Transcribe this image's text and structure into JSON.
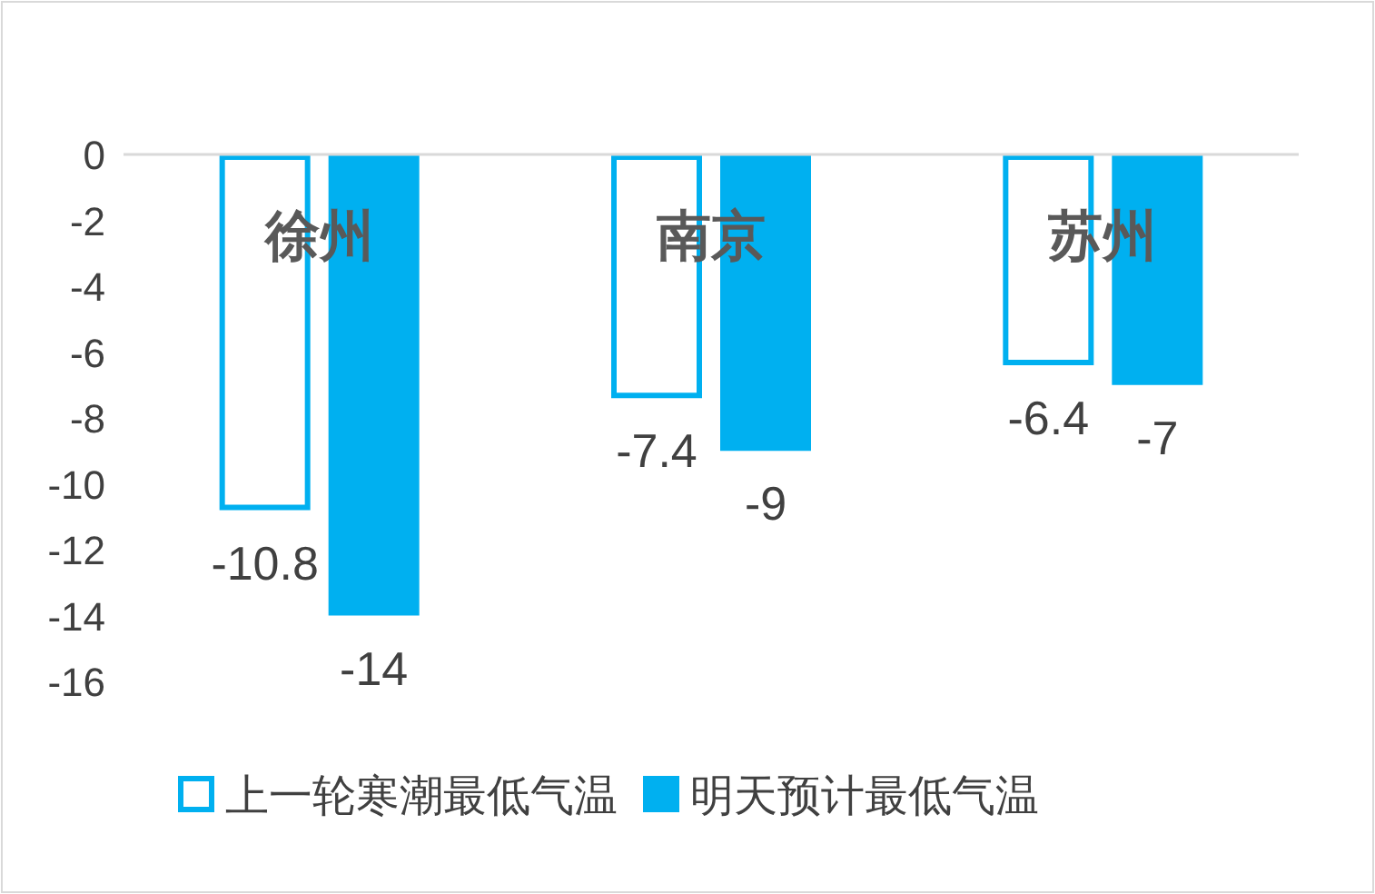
{
  "chart_data": {
    "type": "bar",
    "categories": [
      "徐州",
      "南京",
      "苏州"
    ],
    "series": [
      {
        "name": "上一轮寒潮最低气温",
        "color": "#00b0f0",
        "values": [
          -10.8,
          -7.4,
          -6.4
        ]
      },
      {
        "name": "明天预计最低气温",
        "color": "#00b0f0",
        "values": [
          -14,
          -9,
          -7
        ]
      }
    ],
    "ylim": [
      -16,
      0
    ],
    "yticks": [
      0,
      -2,
      -4,
      -6,
      -8,
      -10,
      -12,
      -14,
      -16
    ],
    "data_labels": true,
    "legend": "bottom",
    "grid": false
  }
}
